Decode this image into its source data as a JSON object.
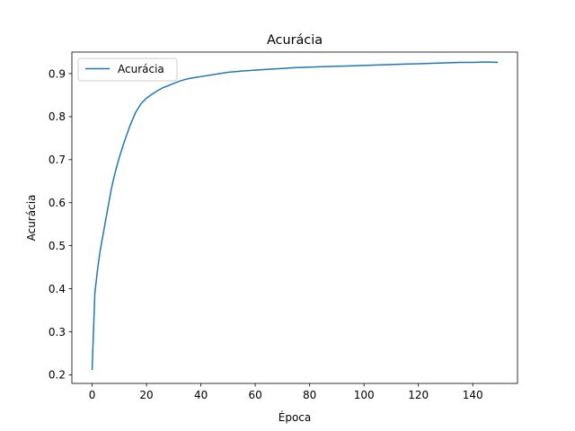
{
  "chart_data": {
    "type": "line",
    "title": "Acurácia",
    "xlabel": "Época",
    "ylabel": "Acurácia",
    "xlim": [
      -7.45,
      156.45
    ],
    "ylim": [
      0.18,
      0.95
    ],
    "xticks": [
      0,
      20,
      40,
      60,
      80,
      100,
      120,
      140
    ],
    "xtick_labels": [
      "0",
      "20",
      "40",
      "60",
      "80",
      "100",
      "120",
      "140"
    ],
    "yticks": [
      0.2,
      0.3,
      0.4,
      0.5,
      0.6,
      0.7,
      0.8,
      0.9
    ],
    "ytick_labels": [
      "0.2",
      "0.3",
      "0.4",
      "0.5",
      "0.6",
      "0.7",
      "0.8",
      "0.9"
    ],
    "grid": false,
    "legend_position": "top-left",
    "series": [
      {
        "name": "Acurácia",
        "color": "#1f77b4",
        "x": [
          0,
          1,
          2,
          3,
          4,
          5,
          6,
          7,
          8,
          9,
          10,
          12,
          14,
          16,
          18,
          20,
          22,
          24,
          26,
          28,
          30,
          32,
          34,
          36,
          38,
          40,
          45,
          50,
          55,
          60,
          65,
          70,
          75,
          80,
          85,
          90,
          95,
          100,
          105,
          110,
          115,
          120,
          125,
          130,
          135,
          140,
          145,
          149
        ],
        "y": [
          0.213,
          0.39,
          0.445,
          0.49,
          0.525,
          0.56,
          0.595,
          0.63,
          0.658,
          0.683,
          0.705,
          0.745,
          0.78,
          0.81,
          0.83,
          0.843,
          0.852,
          0.86,
          0.867,
          0.872,
          0.877,
          0.882,
          0.886,
          0.889,
          0.891,
          0.893,
          0.898,
          0.903,
          0.906,
          0.908,
          0.91,
          0.912,
          0.914,
          0.915,
          0.916,
          0.917,
          0.918,
          0.919,
          0.92,
          0.921,
          0.922,
          0.923,
          0.924,
          0.925,
          0.926,
          0.926,
          0.927,
          0.926
        ]
      }
    ]
  }
}
